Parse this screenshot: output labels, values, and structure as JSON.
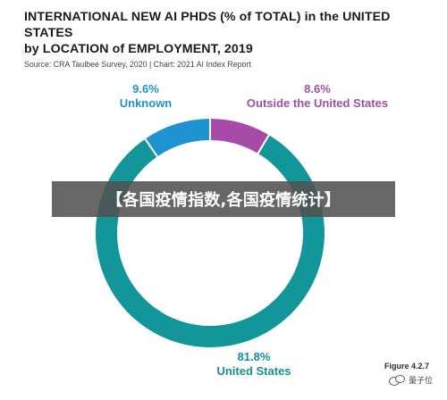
{
  "header": {
    "title_line1": "INTERNATIONAL NEW AI PHDS (% of TOTAL) in the UNITED STATES",
    "title_line2": "by LOCATION of EMPLOYMENT, 2019",
    "source": "Source: CRA Taulbee Survey, 2020 | Chart: 2021 AI Index Report"
  },
  "overlay": {
    "banner_text": "【各国疫情指数,各国疫情统计】"
  },
  "footer": {
    "figure_label": "Figure 4.2.7",
    "watermark_text": "量子位"
  },
  "chart_data": {
    "type": "pie",
    "categories": [
      "United States",
      "Outside the United States",
      "Unknown"
    ],
    "values": [
      81.8,
      8.6,
      9.6
    ],
    "labels": [
      "81.8%",
      "8.6%",
      "9.6%"
    ],
    "colors": [
      "#13969a",
      "#a64ca8",
      "#1f93d1"
    ],
    "title": "INTERNATIONAL NEW AI PHDS (% of TOTAL) in the UNITED STATES by LOCATION of EMPLOYMENT, 2019",
    "donut": true,
    "legend": "none"
  },
  "labels": {
    "unknown": {
      "value": "9.6%",
      "name": "Unknown"
    },
    "outside": {
      "value": "8.6%",
      "name": "Outside the United States"
    },
    "united_states": {
      "value": "81.8%",
      "name": "United States"
    }
  }
}
